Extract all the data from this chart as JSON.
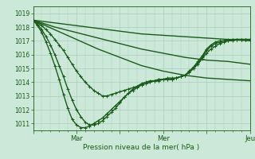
{
  "bg_color": "#cce8d8",
  "grid_color": "#aaccbc",
  "line_color": "#1a5c1a",
  "marker_color": "#1a5c1a",
  "xlabel_text": "Pression niveau de la mer( hPa )",
  "ylim": [
    1010.5,
    1019.5
  ],
  "yticks": [
    1011,
    1012,
    1013,
    1014,
    1015,
    1016,
    1017,
    1018,
    1019
  ],
  "xtick_labels": [
    "",
    "Mar",
    "",
    "Mer",
    "",
    "Jeu"
  ],
  "xtick_positions": [
    0,
    60,
    120,
    180,
    240,
    300
  ],
  "xlim": [
    0,
    300
  ],
  "lines": [
    {
      "x": [
        0,
        30,
        60,
        90,
        120,
        150,
        180,
        210,
        240,
        270,
        300
      ],
      "y": [
        1018.5,
        1018.3,
        1018.1,
        1017.9,
        1017.7,
        1017.5,
        1017.4,
        1017.3,
        1017.2,
        1017.1,
        1017.0
      ],
      "marker": false,
      "lw": 1.0
    },
    {
      "x": [
        0,
        30,
        60,
        90,
        120,
        150,
        180,
        210,
        240,
        270,
        300
      ],
      "y": [
        1018.5,
        1018.0,
        1017.6,
        1017.2,
        1016.8,
        1016.4,
        1016.1,
        1015.8,
        1015.6,
        1015.5,
        1015.3
      ],
      "marker": false,
      "lw": 1.0
    },
    {
      "x": [
        0,
        30,
        60,
        90,
        120,
        150,
        180,
        210,
        240,
        270,
        300
      ],
      "y": [
        1018.5,
        1017.8,
        1017.1,
        1016.4,
        1015.8,
        1015.2,
        1014.8,
        1014.5,
        1014.3,
        1014.2,
        1014.1
      ],
      "marker": false,
      "lw": 1.0
    },
    {
      "x": [
        0,
        6,
        12,
        18,
        24,
        30,
        36,
        42,
        48,
        54,
        60,
        66,
        72,
        78,
        84,
        90,
        96,
        102,
        108,
        114,
        120,
        126,
        132,
        138,
        144,
        150,
        156,
        162,
        168,
        174,
        180,
        186,
        192,
        198,
        204,
        210,
        216,
        222,
        228,
        234,
        240,
        246,
        252,
        258,
        264,
        270,
        276,
        282,
        288,
        294,
        300
      ],
      "y": [
        1018.5,
        1018.3,
        1018.1,
        1017.8,
        1017.5,
        1017.1,
        1016.7,
        1016.3,
        1015.8,
        1015.3,
        1014.8,
        1014.4,
        1014.0,
        1013.7,
        1013.4,
        1013.2,
        1013.0,
        1013.0,
        1013.1,
        1013.2,
        1013.3,
        1013.4,
        1013.5,
        1013.6,
        1013.7,
        1013.8,
        1013.9,
        1014.0,
        1014.1,
        1014.2,
        1014.2,
        1014.2,
        1014.2,
        1014.3,
        1014.4,
        1014.5,
        1014.7,
        1015.0,
        1015.3,
        1015.7,
        1016.1,
        1016.4,
        1016.6,
        1016.8,
        1016.9,
        1017.0,
        1017.0,
        1017.1,
        1017.1,
        1017.1,
        1017.1
      ],
      "marker": true,
      "lw": 1.0
    },
    {
      "x": [
        0,
        6,
        12,
        18,
        24,
        30,
        36,
        42,
        48,
        54,
        60,
        66,
        72,
        78,
        84,
        90,
        96,
        102,
        108,
        114,
        120,
        126,
        132,
        138,
        144,
        150,
        156,
        162,
        168,
        174,
        180,
        186,
        192,
        198,
        204,
        210,
        216,
        222,
        228,
        234,
        240,
        246,
        252,
        258,
        264,
        270,
        276,
        282,
        288,
        294,
        300
      ],
      "y": [
        1018.5,
        1018.2,
        1017.8,
        1017.3,
        1016.7,
        1016.0,
        1015.2,
        1014.4,
        1013.5,
        1012.7,
        1012.0,
        1011.5,
        1011.1,
        1010.9,
        1010.9,
        1011.0,
        1011.2,
        1011.5,
        1011.8,
        1012.1,
        1012.5,
        1012.9,
        1013.2,
        1013.5,
        1013.7,
        1013.9,
        1014.0,
        1014.1,
        1014.1,
        1014.2,
        1014.2,
        1014.3,
        1014.3,
        1014.3,
        1014.4,
        1014.5,
        1014.7,
        1015.0,
        1015.4,
        1015.8,
        1016.3,
        1016.6,
        1016.8,
        1016.9,
        1017.0,
        1017.0,
        1017.1,
        1017.1,
        1017.1,
        1017.1,
        1017.1
      ],
      "marker": true,
      "lw": 1.0
    },
    {
      "x": [
        0,
        6,
        12,
        18,
        24,
        30,
        36,
        42,
        48,
        54,
        60,
        66,
        72,
        78,
        84,
        90,
        96,
        102,
        108,
        114,
        120,
        126,
        132,
        138,
        144,
        150,
        156,
        162,
        168,
        174,
        180,
        186,
        192,
        198,
        204,
        210,
        216,
        222,
        228,
        234,
        240,
        246,
        252,
        258,
        264,
        270,
        276,
        282,
        288,
        294,
        300
      ],
      "y": [
        1018.5,
        1018.1,
        1017.6,
        1016.9,
        1016.1,
        1015.2,
        1014.2,
        1013.1,
        1012.1,
        1011.3,
        1010.9,
        1010.7,
        1010.7,
        1010.8,
        1011.0,
        1011.2,
        1011.4,
        1011.7,
        1012.0,
        1012.3,
        1012.6,
        1012.9,
        1013.2,
        1013.4,
        1013.6,
        1013.8,
        1013.9,
        1014.0,
        1014.1,
        1014.1,
        1014.2,
        1014.2,
        1014.2,
        1014.3,
        1014.4,
        1014.5,
        1014.8,
        1015.1,
        1015.5,
        1015.9,
        1016.4,
        1016.7,
        1016.9,
        1017.0,
        1017.0,
        1017.1,
        1017.1,
        1017.1,
        1017.1,
        1017.1,
        1017.1
      ],
      "marker": true,
      "lw": 1.0
    }
  ]
}
